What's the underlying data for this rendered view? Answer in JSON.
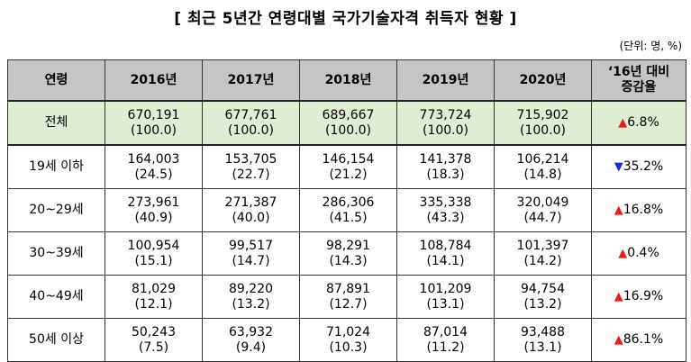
{
  "title": "[ 최근 5년간 연령대별 국가기술자격 취득자 현황 ]",
  "unit": "(단위: 명, %)",
  "headers": [
    "연령",
    "2016년",
    "2017년",
    "2018년",
    "2019년",
    "2020년",
    "‘16년 대비\n증감율"
  ],
  "header_last_line1": "‘16년 대비",
  "header_last_line2": "증감율",
  "rows": [
    {
      "label": "전체",
      "cells": [
        {
          "v": "670,191",
          "p": "(100.0)"
        },
        {
          "v": "677,761",
          "p": "(100.0)"
        },
        {
          "v": "689,667",
          "p": "(100.0)"
        },
        {
          "v": "773,724",
          "p": "(100.0)"
        },
        {
          "v": "715,902",
          "p": "(100.0)"
        }
      ],
      "rate": "6.8%",
      "dir": "▲"
    },
    {
      "label": "19세 이하",
      "cells": [
        {
          "v": "164,003",
          "p": "(24.5)"
        },
        {
          "v": "153,705",
          "p": "(22.7)"
        },
        {
          "v": "146,154",
          "p": "(21.2)"
        },
        {
          "v": "141,378",
          "p": "(18.3)"
        },
        {
          "v": "106,214",
          "p": "(14.8)"
        }
      ],
      "rate": "35.2%",
      "dir": "▼"
    },
    {
      "label": "20~29세",
      "cells": [
        {
          "v": "273,961",
          "p": "(40.9)"
        },
        {
          "v": "271,387",
          "p": "(40.0)"
        },
        {
          "v": "286,306",
          "p": "(41.5)"
        },
        {
          "v": "335,338",
          "p": "(43.3)"
        },
        {
          "v": "320,049",
          "p": "(44.7)"
        }
      ],
      "rate": "16.8%",
      "dir": "▲"
    },
    {
      "label": "30~39세",
      "cells": [
        {
          "v": "100,954",
          "p": "(15.1)"
        },
        {
          "v": "99,517",
          "p": "(14.7)"
        },
        {
          "v": "98,291",
          "p": "(14.3)"
        },
        {
          "v": "108,784",
          "p": "(14.1)"
        },
        {
          "v": "101,397",
          "p": "(14.2)"
        }
      ],
      "rate": "0.4%",
      "dir": "▲"
    },
    {
      "label": "40~49세",
      "cells": [
        {
          "v": "81,029",
          "p": "(12.1)"
        },
        {
          "v": "89,220",
          "p": "(13.2)"
        },
        {
          "v": "87,891",
          "p": "(12.7)"
        },
        {
          "v": "101,209",
          "p": "(13.1)"
        },
        {
          "v": "94,754",
          "p": "(13.2)"
        }
      ],
      "rate": "16.9%",
      "dir": "▲"
    },
    {
      "label": "50세 이상",
      "cells": [
        {
          "v": "50,243",
          "p": "(7.5)"
        },
        {
          "v": "63,932",
          "p": "(9.4)"
        },
        {
          "v": "71,024",
          "p": "(10.3)"
        },
        {
          "v": "87,014",
          "p": "(11.2)"
        },
        {
          "v": "93,488",
          "p": "(13.1)"
        }
      ],
      "rate": "86.1%",
      "dir": "▲"
    }
  ],
  "colors": {
    "header_bg": "#c5c5c5",
    "total_bg": "#dfedd2",
    "up": "#e0201a",
    "down": "#1a2ccf"
  }
}
